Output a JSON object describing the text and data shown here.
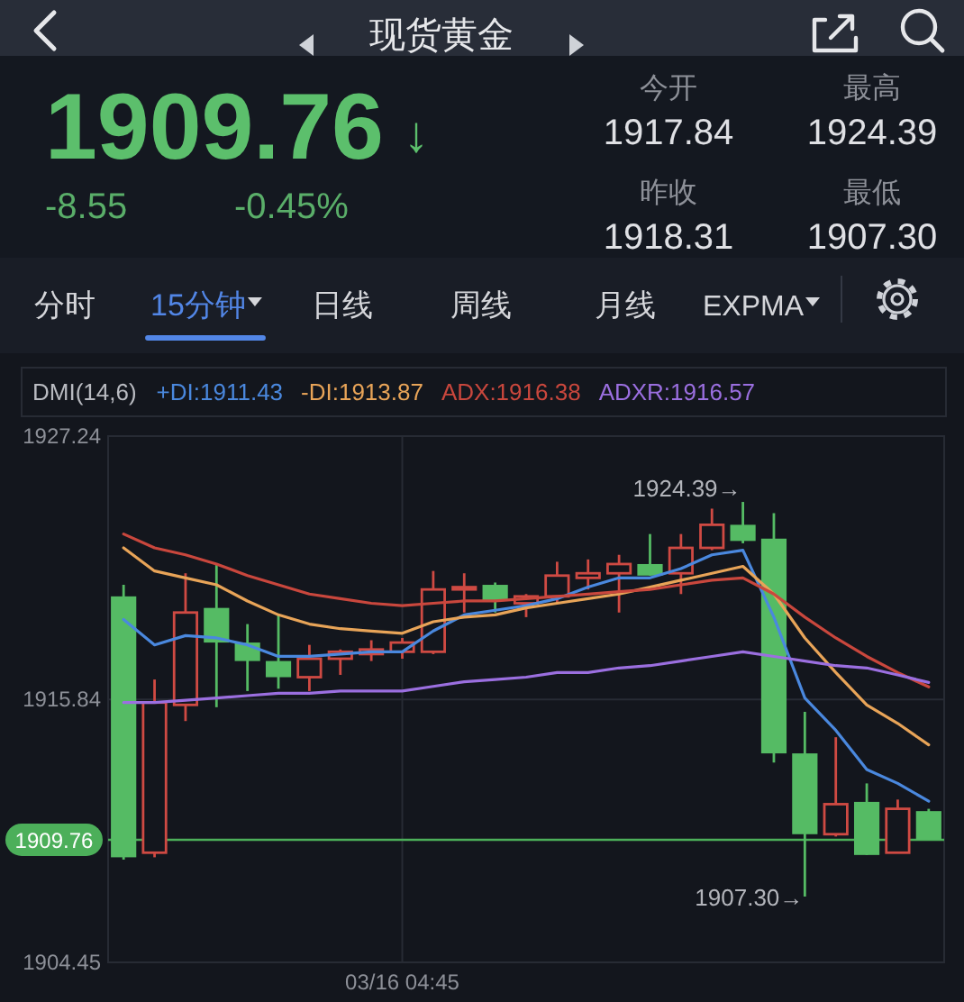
{
  "chart_data": {
    "type": "candlestick",
    "title": "现货黄金",
    "legend_title": "DMI(14,6)",
    "legend": "top left",
    "grid": true,
    "categories": [
      null,
      null,
      null,
      null,
      null,
      null,
      null,
      null,
      null,
      "03/16 04:45",
      null,
      null,
      null,
      null,
      null,
      null,
      null,
      null,
      null,
      null,
      null,
      null,
      null,
      null,
      null,
      null,
      null
    ],
    "ohlc": [
      [
        1920.3,
        1920.8,
        1908.9,
        1909.0
      ],
      [
        1909.2,
        1916.7,
        1909.0,
        1915.7
      ],
      [
        1915.6,
        1921.3,
        1914.9,
        1919.6
      ],
      [
        1919.8,
        1921.7,
        1915.5,
        1918.3
      ],
      [
        1918.3,
        1919.1,
        1916.2,
        1917.5
      ],
      [
        1917.5,
        1919.5,
        1916.3,
        1916.8
      ],
      [
        1916.8,
        1918.2,
        1916.2,
        1917.6
      ],
      [
        1917.6,
        1918.0,
        1916.9,
        1917.9
      ],
      [
        1917.8,
        1918.4,
        1917.5,
        1918.0
      ],
      [
        1917.9,
        1918.5,
        1917.6,
        1918.3
      ],
      [
        1917.9,
        1921.4,
        1917.8,
        1920.6
      ],
      [
        1920.6,
        1921.3,
        1919.6,
        1920.7
      ],
      [
        1920.8,
        1920.9,
        1919.6,
        1920.1
      ],
      [
        1920.0,
        1920.4,
        1919.4,
        1920.3
      ],
      [
        1920.3,
        1921.8,
        1920.0,
        1921.2
      ],
      [
        1921.1,
        1921.9,
        1920.6,
        1921.3
      ],
      [
        1921.3,
        1922.1,
        1919.6,
        1921.7
      ],
      [
        1921.7,
        1923.0,
        1921.2,
        1921.2
      ],
      [
        1921.3,
        1923.0,
        1920.4,
        1922.4
      ],
      [
        1922.4,
        1924.1,
        1922.3,
        1923.4
      ],
      [
        1923.4,
        1924.39,
        1922.6,
        1922.7
      ],
      [
        1922.8,
        1923.9,
        1913.1,
        1913.5
      ],
      [
        1913.5,
        1915.3,
        1907.3,
        1910.0
      ],
      [
        1910.0,
        1914.2,
        1909.9,
        1911.3
      ],
      [
        1911.4,
        1912.2,
        1909.1,
        1909.1
      ],
      [
        1909.2,
        1911.5,
        1909.2,
        1911.1
      ],
      [
        1911.0,
        1911.1,
        1909.76,
        1909.76
      ]
    ],
    "colors": [
      "#55bb64",
      "#cf4a43",
      "#cf4a43",
      "#55bb64",
      "#55bb64",
      "#55bb64",
      "#cf4a43",
      "#cf4a43",
      "#cf4a43",
      "#cf4a43",
      "#cf4a43",
      "#cf4a43",
      "#55bb64",
      "#cf4a43",
      "#cf4a43",
      "#cf4a43",
      "#cf4a43",
      "#55bb64",
      "#cf4a43",
      "#cf4a43",
      "#55bb64",
      "#55bb64",
      "#55bb64",
      "#cf4a43",
      "#55bb64",
      "#cf4a43",
      "#55bb64"
    ],
    "series": [
      {
        "name": "+DI:1911.43",
        "type": "line",
        "color": "#4a88de",
        "values": [
          1919.3,
          1918.2,
          1918.6,
          1918.5,
          1918.2,
          1917.7,
          1917.7,
          1917.8,
          1917.9,
          1917.9,
          1918.8,
          1919.5,
          1919.7,
          1919.9,
          1920.2,
          1920.7,
          1921.1,
          1921.1,
          1921.5,
          1922.1,
          1922.3,
          1919.4,
          1915.9,
          1914.5,
          1912.8,
          1912.2,
          1911.43
        ]
      },
      {
        "name": "-DI:1913.87",
        "type": "line",
        "color": "#e8a458",
        "values": [
          1922.4,
          1921.4,
          1921.1,
          1920.8,
          1920.1,
          1919.5,
          1919.1,
          1918.9,
          1918.8,
          1918.7,
          1919.2,
          1919.4,
          1919.5,
          1919.8,
          1920.0,
          1920.2,
          1920.4,
          1920.7,
          1921.0,
          1921.3,
          1921.6,
          1920.4,
          1918.5,
          1917.0,
          1915.6,
          1914.8,
          1913.87
        ]
      },
      {
        "name": "ADX:1916.38",
        "type": "line",
        "color": "#c9473d",
        "values": [
          1923.0,
          1922.4,
          1922.1,
          1921.7,
          1921.2,
          1920.8,
          1920.4,
          1920.2,
          1920.0,
          1919.9,
          1920.0,
          1920.1,
          1920.1,
          1920.2,
          1920.3,
          1920.4,
          1920.5,
          1920.6,
          1920.8,
          1921.0,
          1921.1,
          1920.4,
          1919.4,
          1918.5,
          1917.7,
          1917.0,
          1916.38
        ]
      },
      {
        "name": "ADXR:1916.57",
        "type": "line",
        "color": "#9b6fe0",
        "values": [
          1915.7,
          1915.7,
          1915.8,
          1915.9,
          1916.0,
          1916.1,
          1916.1,
          1916.2,
          1916.2,
          1916.2,
          1916.4,
          1916.6,
          1916.7,
          1916.8,
          1917.0,
          1917.0,
          1917.2,
          1917.3,
          1917.5,
          1917.7,
          1917.9,
          1917.7,
          1917.5,
          1917.3,
          1917.2,
          1916.9,
          1916.57
        ]
      }
    ],
    "ylim": [
      1904.45,
      1927.24
    ],
    "yticks": [
      1904.45,
      1915.84,
      1927.24
    ],
    "ref_lines": [
      {
        "axis": "y",
        "value": 1909.76,
        "label": "1909.76",
        "color": "#4caf5a"
      }
    ],
    "annotations": [
      "1909.76",
      "↓",
      "-8.55",
      "-0.45%",
      "今开",
      "1917.84",
      "最高",
      "1924.39",
      "昨收",
      "1918.31",
      "最低",
      "1907.30",
      "分时",
      "15分钟",
      "日线",
      "周线",
      "月线",
      "EXPMA",
      "1924.39→",
      "1907.30→"
    ]
  }
}
